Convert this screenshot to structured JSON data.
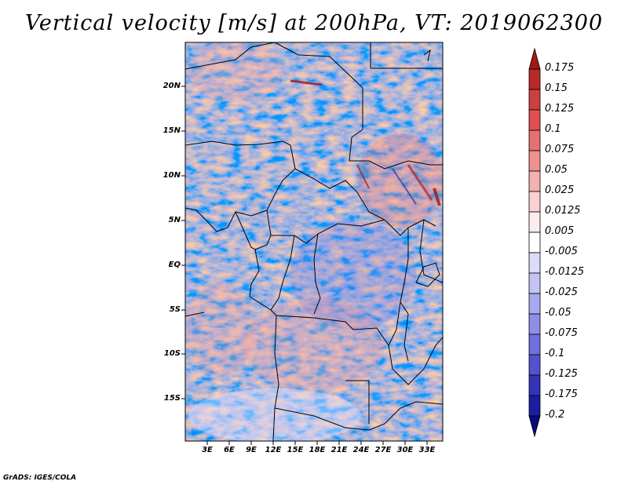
{
  "title": "Vertical velocity [m/s] at 200hPa, VT: 2019062300",
  "map": {
    "latitude_labels": [
      "20N",
      "15N",
      "10N",
      "5N",
      "EQ",
      "5S",
      "10S",
      "15S"
    ],
    "longitude_labels": [
      "3E",
      "6E",
      "9E",
      "12E",
      "15E",
      "18E",
      "21E",
      "24E",
      "27E",
      "30E",
      "33E"
    ]
  },
  "colorbar": {
    "labels": [
      "0.175",
      "0.15",
      "0.125",
      "0.1",
      "0.075",
      "0.05",
      "0.025",
      "0.0125",
      "0.005",
      "-0.005",
      "-0.0125",
      "-0.025",
      "-0.05",
      "-0.075",
      "-0.1",
      "-0.125",
      "-0.175",
      "-0.2"
    ],
    "colors": [
      "#a01818",
      "#b82828",
      "#cc4040",
      "#e05050",
      "#e87070",
      "#f09090",
      "#f5b0b0",
      "#fad0d0",
      "#fdecec",
      "#ffffff",
      "#dcdcf8",
      "#c4c4f4",
      "#a8a8ee",
      "#8e8ee6",
      "#7070dc",
      "#5252cc",
      "#3434b8",
      "#1c1ca0",
      "#0a0a80"
    ]
  },
  "credit": "GrADS: IGES/COLA"
}
